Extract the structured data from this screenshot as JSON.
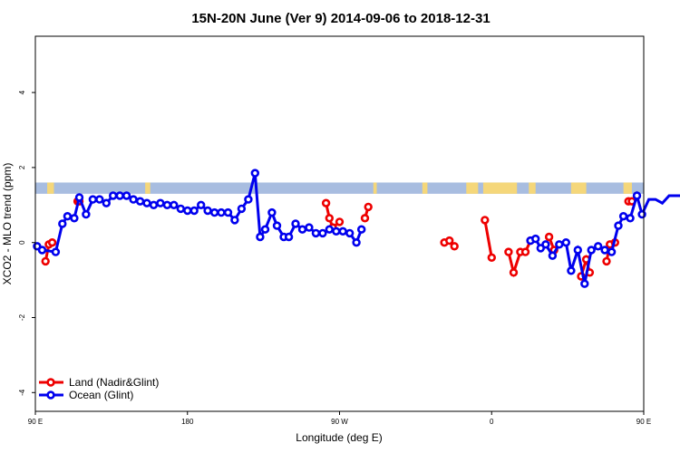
{
  "chart_data": {
    "type": "line",
    "title": "15N-20N June (Ver 9)   2014-09-06 to 2018-12-31",
    "xlabel": "Longitude (deg E)",
    "ylabel": "XCO2 - MLO trend (ppm)",
    "xlim": [
      90,
      450
    ],
    "ylim": [
      -4.5,
      5.5
    ],
    "x_ticks": [
      {
        "value": 90,
        "label": "90 E"
      },
      {
        "value": 180,
        "label": "180"
      },
      {
        "value": 270,
        "label": "90 W"
      },
      {
        "value": 360,
        "label": "0"
      },
      {
        "value": 450,
        "label": "90 E"
      },
      {
        "value": 540,
        "label": "180"
      }
    ],
    "y_ticks": [
      {
        "value": -4,
        "label": "-4"
      },
      {
        "value": -2,
        "label": "-2"
      },
      {
        "value": 0,
        "label": "0"
      },
      {
        "value": 2,
        "label": "2"
      },
      {
        "value": 4,
        "label": "4"
      }
    ],
    "land_mask_band": {
      "y_range": [
        1.3,
        1.6
      ],
      "ocean_color": "#a8bde0",
      "land_color": "#f5d77a",
      "land_x_ranges": [
        [
          97,
          101
        ],
        [
          155,
          158
        ],
        [
          290,
          292
        ],
        [
          319,
          322
        ],
        [
          345,
          352
        ],
        [
          355,
          375
        ],
        [
          382,
          386
        ],
        [
          407,
          416
        ],
        [
          438,
          443
        ]
      ]
    },
    "legend": {
      "position": "bottom-left",
      "entries": [
        "Land (Nadir&Glint)",
        "Ocean (Glint)"
      ]
    },
    "series": [
      {
        "name": "Land (Nadir&Glint)",
        "color": "#ee0000",
        "segments": [
          [
            [
              96,
              -0.5
            ],
            [
              98,
              -0.05
            ],
            [
              100,
              0.0
            ]
          ],
          [
            [
              115,
              1.1
            ],
            [
              116,
              1.1
            ]
          ],
          [
            [
              262,
              1.05
            ],
            [
              264,
              0.65
            ],
            [
              266,
              0.4
            ],
            [
              270,
              0.55
            ]
          ],
          [
            [
              285,
              0.65
            ],
            [
              287,
              0.95
            ]
          ],
          [
            [
              332,
              0.0
            ],
            [
              335,
              0.05
            ],
            [
              338,
              -0.1
            ]
          ],
          [
            [
              356,
              0.6
            ],
            [
              360,
              -0.4
            ]
          ],
          [
            [
              370,
              -0.25
            ],
            [
              373,
              -0.8
            ],
            [
              377,
              -0.25
            ],
            [
              380,
              -0.25
            ],
            [
              383,
              0.05
            ]
          ],
          [
            [
              394,
              0.15
            ],
            [
              397,
              -0.2
            ]
          ],
          [
            [
              413,
              -0.9
            ],
            [
              416,
              -0.45
            ],
            [
              418,
              -0.8
            ]
          ],
          [
            [
              428,
              -0.5
            ],
            [
              430,
              -0.05
            ],
            [
              433,
              0.0
            ]
          ],
          [
            [
              441,
              1.1
            ],
            [
              443,
              1.1
            ]
          ]
        ]
      },
      {
        "name": "Ocean (Glint)",
        "color": "#0000ee",
        "segments": [
          [
            [
              91,
              -0.1
            ],
            [
              94,
              -0.2
            ],
            [
              102,
              -0.25
            ],
            [
              106,
              0.5
            ],
            [
              109,
              0.7
            ],
            [
              113,
              0.65
            ],
            [
              116,
              1.2
            ],
            [
              120,
              0.75
            ],
            [
              124,
              1.15
            ],
            [
              128,
              1.15
            ],
            [
              132,
              1.05
            ],
            [
              136,
              1.25
            ],
            [
              140,
              1.25
            ],
            [
              144,
              1.25
            ],
            [
              148,
              1.15
            ],
            [
              152,
              1.1
            ],
            [
              156,
              1.05
            ],
            [
              160,
              1.0
            ],
            [
              164,
              1.05
            ],
            [
              168,
              1.0
            ],
            [
              172,
              1.0
            ],
            [
              176,
              0.9
            ],
            [
              180,
              0.85
            ],
            [
              184,
              0.85
            ],
            [
              188,
              1.0
            ],
            [
              192,
              0.85
            ],
            [
              196,
              0.8
            ],
            [
              200,
              0.8
            ],
            [
              204,
              0.8
            ],
            [
              208,
              0.6
            ],
            [
              212,
              0.9
            ],
            [
              216,
              1.15
            ],
            [
              220,
              1.85
            ],
            [
              223,
              0.15
            ],
            [
              226,
              0.35
            ],
            [
              230,
              0.8
            ],
            [
              233,
              0.45
            ],
            [
              237,
              0.15
            ],
            [
              240,
              0.15
            ],
            [
              244,
              0.5
            ],
            [
              248,
              0.35
            ],
            [
              252,
              0.4
            ],
            [
              256,
              0.25
            ],
            [
              260,
              0.25
            ],
            [
              264,
              0.35
            ],
            [
              268,
              0.3
            ],
            [
              272,
              0.3
            ],
            [
              276,
              0.25
            ],
            [
              280,
              0.0
            ],
            [
              283,
              0.35
            ]
          ],
          [
            [
              383,
              0.05
            ],
            [
              386,
              0.1
            ],
            [
              389,
              -0.15
            ],
            [
              392,
              -0.05
            ],
            [
              396,
              -0.35
            ],
            [
              400,
              -0.05
            ],
            [
              404,
              0.0
            ],
            [
              407,
              -0.75
            ],
            [
              411,
              -0.2
            ],
            [
              415,
              -1.1
            ],
            [
              419,
              -0.2
            ],
            [
              423,
              -0.1
            ],
            [
              427,
              -0.2
            ],
            [
              431,
              -0.25
            ],
            [
              435,
              0.45
            ],
            [
              438,
              0.7
            ],
            [
              442,
              0.65
            ],
            [
              446,
              1.25
            ],
            [
              449,
              0.75
            ],
            [
              453,
              1.15
            ],
            [
              457,
              1.15
            ],
            [
              461,
              1.05
            ],
            [
              465,
              1.25
            ],
            [
              469,
              1.25
            ],
            [
              473,
              1.25
            ],
            [
              477,
              1.2
            ],
            [
              481,
              1.15
            ],
            [
              485,
              1.1
            ],
            [
              489,
              1.05
            ]
          ]
        ]
      }
    ]
  }
}
